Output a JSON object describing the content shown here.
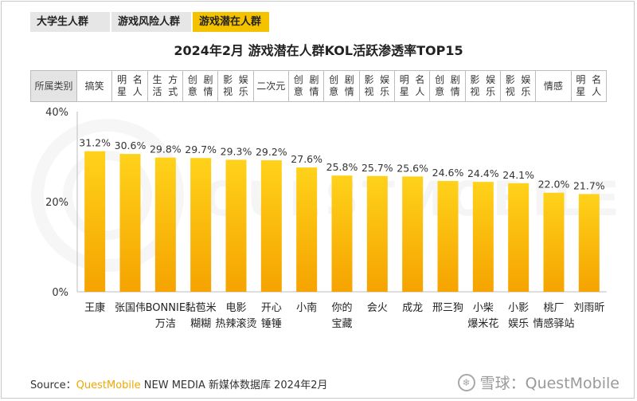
{
  "tabs": [
    {
      "label": "大学生人群",
      "active": false
    },
    {
      "label": "游戏风险人群",
      "active": false
    },
    {
      "label": "游戏潜在人群",
      "active": true
    }
  ],
  "colors": {
    "bar_top": "#ffd21a",
    "bar_bottom": "#f5a300",
    "tab_active": "#f5c200",
    "tab_inactive": "#e6e6e6",
    "brand": "#f0a800"
  },
  "category_header": "所属\n类别",
  "chart_data": {
    "type": "bar",
    "title": "2024年2月 游戏潜在人群KOL活跃渗透率TOP15",
    "categories": [
      "王康",
      "张国伟",
      "BONNIE\n万洁",
      "黏苞米\n糊糊",
      "电影\n热辣滚烫",
      "开心\n锤锤",
      "小南",
      "你的\n宝藏",
      "会火",
      "成龙",
      "邢三狗",
      "小柴\n爆米花",
      "小影\n娱乐",
      "桃厂\n情感驿站",
      "刘雨昕"
    ],
    "kol_types": [
      "搞笑",
      "明星\n名人",
      "生活\n方式",
      "创意\n剧情",
      "影视\n娱乐",
      "二次元",
      "创意\n剧情",
      "创意\n剧情",
      "影视\n娱乐",
      "明星\n名人",
      "创意\n剧情",
      "影视\n娱乐",
      "影视\n娱乐",
      "情感",
      "明星\n名人"
    ],
    "values": [
      31.2,
      30.6,
      29.8,
      29.7,
      29.3,
      29.2,
      27.6,
      25.8,
      25.7,
      25.6,
      24.6,
      24.4,
      24.1,
      22.0,
      21.7
    ],
    "value_labels": [
      "31.2%",
      "30.6%",
      "29.8%",
      "29.7%",
      "29.3%",
      "29.2%",
      "27.6%",
      "25.8%",
      "25.7%",
      "25.6%",
      "24.6%",
      "24.4%",
      "24.1%",
      "22.0%",
      "21.7%"
    ],
    "yticks": [
      "0%",
      "20%",
      "40%"
    ],
    "ylim": [
      0,
      40
    ],
    "grid": false
  },
  "watermark": "QUESTMOBILE",
  "source": {
    "prefix": "Source：",
    "brand": "QuestMobile",
    "rest": " NEW MEDIA 新媒体数据库 2024年2月"
  },
  "xueqiu": {
    "logo_glyph": "❄",
    "text": "雪球：QuestMobile"
  }
}
